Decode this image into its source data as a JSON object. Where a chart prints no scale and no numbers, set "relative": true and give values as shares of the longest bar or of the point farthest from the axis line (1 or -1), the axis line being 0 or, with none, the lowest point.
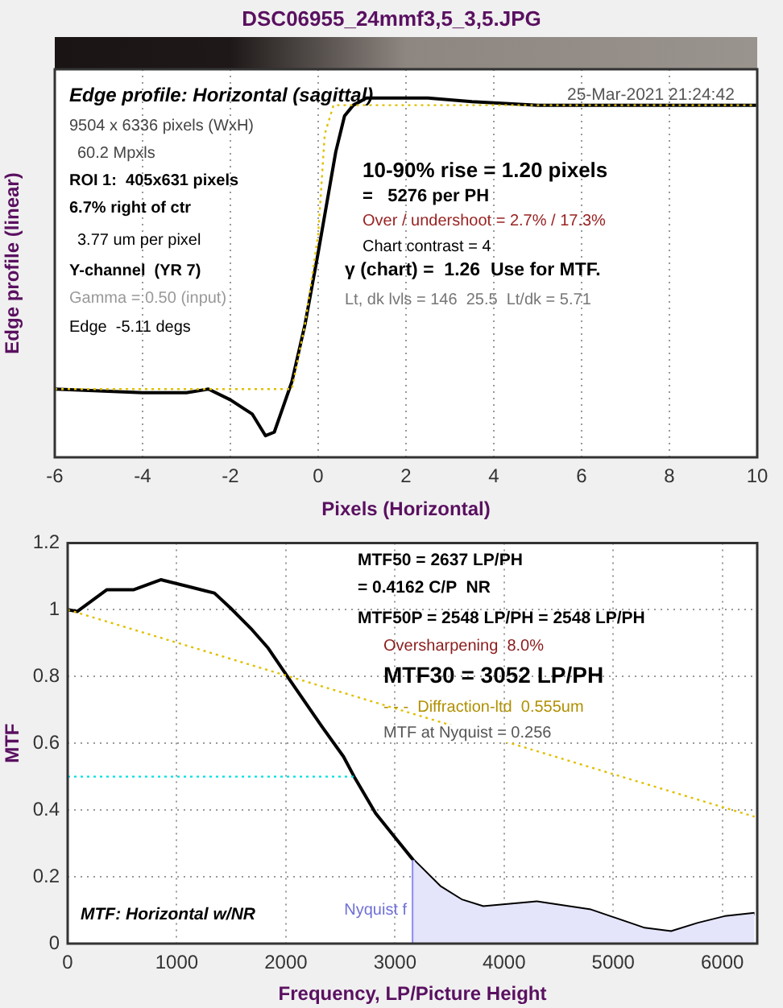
{
  "chart_data": [
    {
      "type": "line",
      "title": "DSC06955_24mmf3,5_3,5.JPG",
      "xlabel": "Pixels (Horizontal)",
      "ylabel": "Edge profile (linear)",
      "relative": true,
      "xlim": [
        -6,
        10
      ],
      "xticks": [
        -6,
        -4,
        -2,
        0,
        2,
        4,
        6,
        8,
        10
      ],
      "grid": "x",
      "legend": false,
      "tick_labels": "x",
      "marker": "none",
      "series": [
        {
          "color": "#e0c000",
          "line_style": "dotted",
          "x": [
            -6,
            -0.6,
            -0.3,
            0,
            0.15,
            0.35,
            10
          ],
          "values": [
            0.19,
            0.19,
            0.37,
            0.62,
            0.9,
            0.98,
            0.98
          ]
        },
        {
          "color": "#000000",
          "x": [
            -6,
            -4,
            -3,
            -2.5,
            -2,
            -1.5,
            -1.2,
            -1,
            -0.6,
            -0.3,
            0,
            0.2,
            0.4,
            0.6,
            0.8,
            1.1,
            1.5,
            2,
            2.5,
            3.5,
            5,
            7,
            10
          ],
          "values": [
            0.19,
            0.18,
            0.18,
            0.19,
            0.16,
            0.12,
            0.06,
            0.07,
            0.21,
            0.37,
            0.57,
            0.71,
            0.85,
            0.95,
            0.98,
            1.0,
            1.0,
            1.0,
            1.0,
            0.99,
            0.98,
            0.98,
            0.98
          ]
        }
      ],
      "annotations": [
        "Edge profile: Horizontal (sagittal)",
        "25-Mar-2021 21:24:42",
        "9504 x 6336 pixels (WxH)",
        "60.2 Mpxls",
        "ROI 1:  405x631 pixels",
        "6.7% right of ctr",
        "3.77 um per pixel",
        "Y-channel  (YR 7)",
        "Gamma = 0.50 (input)",
        "Edge  -5.11 degs",
        "10-90% rise = 1.20 pixels",
        "=   5276 per PH",
        "Over / undershoot = 2.7% / 17.3%",
        "Chart contrast = 4",
        "γ (chart) =  1.26  Use for MTF.",
        "Lt, dk lvls = 146  25.5  Lt/dk = 5.71"
      ]
    },
    {
      "type": "line",
      "xlabel": "Frequency, LP/Picture Height",
      "ylabel": "MTF",
      "xlim": [
        0,
        6320
      ],
      "xticks": [
        0,
        1000,
        2000,
        3000,
        4000,
        5000,
        6000
      ],
      "ylim": [
        0,
        1.2
      ],
      "yticks": [
        0,
        0.2,
        0.4,
        0.6,
        0.8,
        1,
        1.2
      ],
      "grid": true,
      "legend": false,
      "marker": "none",
      "series": [
        {
          "type": "area",
          "color": "#e4e4fa",
          "x": [
            3168,
            3414,
            3611,
            3808,
            4300,
            4794,
            5286,
            5532,
            5778,
            6024,
            6296
          ],
          "values": [
            0.25,
            0.17,
            0.13,
            0.11,
            0.124,
            0.1,
            0.045,
            0.035,
            0.06,
            0.08,
            0.09
          ]
        },
        {
          "color": "#e0c000",
          "line_style": "dotted",
          "x": [
            0,
            6296
          ],
          "values": [
            1.0,
            0.38
          ]
        },
        {
          "color": "#00e0e0",
          "line_style": "dotted",
          "x": [
            0,
            2637
          ],
          "values": [
            0.5,
            0.5
          ]
        },
        {
          "color": "#9090f0",
          "x": [
            3168,
            3168
          ],
          "values": [
            0,
            0.25
          ]
        },
        {
          "color": "#000000",
          "x": [
            0,
            89,
            360,
            607,
            853,
            1099,
            1345,
            1493,
            1690,
            1838,
            2035,
            2330,
            2528,
            2626,
            2823,
            3020,
            3168,
            3414,
            3611,
            3808,
            4300,
            4794,
            5286,
            5532,
            5778,
            6024,
            6296
          ],
          "values": [
            1.0,
            0.995,
            1.06,
            1.06,
            1.09,
            1.07,
            1.05,
            1.005,
            0.94,
            0.885,
            0.79,
            0.65,
            0.56,
            0.5,
            0.39,
            0.31,
            0.25,
            0.17,
            0.13,
            0.11,
            0.124,
            0.1,
            0.045,
            0.035,
            0.06,
            0.08,
            0.09
          ]
        }
      ],
      "annotations": [
        "MTF50 = 2637 LP/PH",
        "= 0.4162 C/P  NR",
        "MTF50P = 2548 LP/PH = 2548 LP/PH",
        "Oversharpening  8.0%",
        "MTF30 = 3052 LP/PH",
        "- - -  Diffraction-ltd  0.555um",
        "MTF at Nyquist = 0.256",
        "MTF: Horizontal w/NR",
        {
          "text": "Nyquist f",
          "x": 3168,
          "y": 0.1
        }
      ]
    }
  ]
}
